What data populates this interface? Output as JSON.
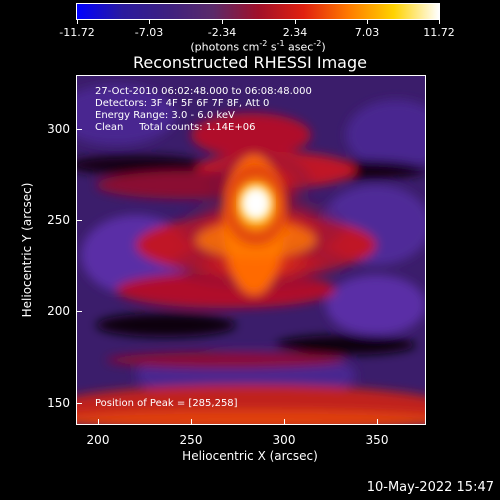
{
  "colorbar": {
    "tick_labels": [
      "-11.72",
      "-7.03",
      "-2.34",
      "2.34",
      "7.03",
      "11.72"
    ],
    "units_prefix": "(photons cm",
    "units_sup1": "-2",
    "units_mid": " s",
    "units_sup2": "-1",
    "units_mid2": " asec",
    "units_sup3": "-2",
    "units_suffix": ")",
    "colors": [
      "#0000ff",
      "#2a1a9e",
      "#3d2080",
      "#5a2a6a",
      "#a0102a",
      "#e0200f",
      "#ff7a00",
      "#ffd200",
      "#ffffff"
    ]
  },
  "title": "Reconstructed RHESSI Image",
  "annotations": {
    "line1": "27-Oct-2010 06:02:48.000 to 06:08:48.000",
    "line2": "Detectors: 3F 4F 5F 6F 7F 8F, Att 0",
    "line3": "Energy Range: 3.0 - 6.0 keV",
    "line4": "Clean     Total counts: 1.14E+06"
  },
  "peak_label": "Position of Peak = [285,258]",
  "x_axis": {
    "label": "Heliocentric X (arcsec)",
    "ticks": [
      "200",
      "250",
      "300",
      "350"
    ]
  },
  "y_axis": {
    "label": "Heliocentric Y (arcsec)",
    "ticks": [
      "150",
      "200",
      "250",
      "300"
    ]
  },
  "footer": "10-May-2022 15:47"
}
